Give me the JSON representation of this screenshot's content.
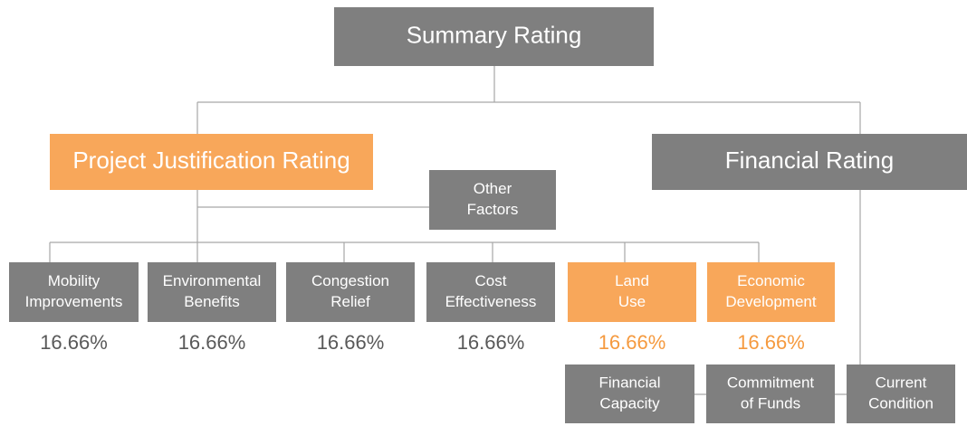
{
  "top": {
    "label": [
      "Summary Rating"
    ]
  },
  "branches": [
    {
      "label": [
        "Project Justification Rating"
      ]
    },
    {
      "label": [
        "Financial Rating"
      ]
    }
  ],
  "other": {
    "label": [
      "Other",
      "Factors"
    ]
  },
  "criteria": [
    {
      "label": [
        "Mobility",
        "Improvements"
      ],
      "weight": "16.66%"
    },
    {
      "label": [
        "Environmental",
        "Benefits"
      ],
      "weight": "16.66%"
    },
    {
      "label": [
        "Congestion",
        "Relief"
      ],
      "weight": "16.66%"
    },
    {
      "label": [
        "Cost",
        "Effectiveness"
      ],
      "weight": "16.66%"
    },
    {
      "label": [
        "Land",
        "Use"
      ],
      "weight": "16.66%"
    },
    {
      "label": [
        "Economic",
        "Development"
      ],
      "weight": "16.66%"
    }
  ],
  "financial": [
    {
      "label": [
        "Financial",
        "Capacity"
      ]
    },
    {
      "label": [
        "Commitment",
        "of Funds"
      ]
    },
    {
      "label": [
        "Current",
        "Condition"
      ]
    }
  ]
}
